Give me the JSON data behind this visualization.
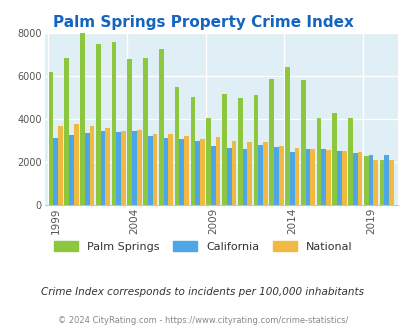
{
  "title": "Palm Springs Property Crime Index",
  "years": [
    1999,
    2000,
    2001,
    2002,
    2003,
    2004,
    2005,
    2006,
    2007,
    2008,
    2009,
    2010,
    2011,
    2012,
    2013,
    2014,
    2015,
    2016,
    2017,
    2018,
    2019,
    2020
  ],
  "palm_springs": [
    6200,
    6850,
    8000,
    7500,
    7600,
    6800,
    6850,
    7250,
    5500,
    5000,
    4050,
    5150,
    4950,
    5100,
    5850,
    6400,
    5800,
    4050,
    4250,
    4050,
    2250,
    2100
  ],
  "california": [
    3100,
    3250,
    3350,
    3450,
    3400,
    3450,
    3200,
    3100,
    3050,
    2950,
    2750,
    2650,
    2600,
    2800,
    2700,
    2450,
    2600,
    2600,
    2500,
    2400,
    2300,
    2300
  ],
  "national": [
    3650,
    3750,
    3650,
    3550,
    3450,
    3500,
    3300,
    3300,
    3200,
    3050,
    3150,
    2950,
    2900,
    2900,
    2750,
    2650,
    2600,
    2550,
    2500,
    2450,
    2100,
    2100
  ],
  "ps_color": "#8dc63f",
  "ca_color": "#4da6e8",
  "nat_color": "#f0b942",
  "bg_color": "#e0eef5",
  "title_color": "#1565c0",
  "subtitle_text": "Crime Index corresponds to incidents per 100,000 inhabitants",
  "footer_text": "© 2024 CityRating.com - https://www.cityrating.com/crime-statistics/",
  "ylabel_max": 8000,
  "yticks": [
    0,
    2000,
    4000,
    6000,
    8000
  ],
  "xtick_years": [
    1999,
    2004,
    2009,
    2014,
    2019
  ]
}
